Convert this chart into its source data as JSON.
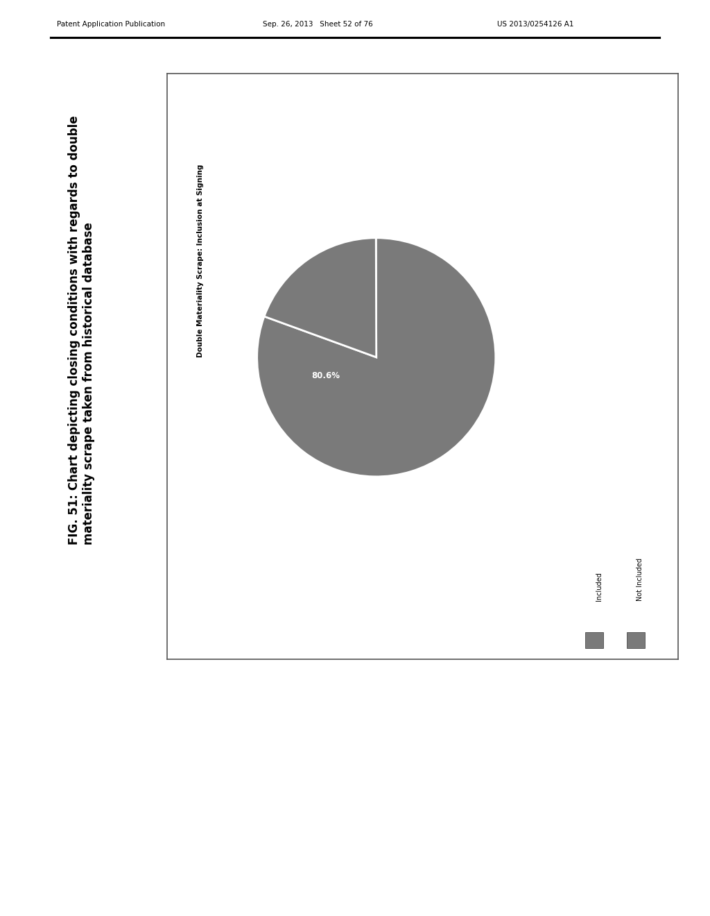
{
  "title_line1": "FIG. 51: Chart depicting closing conditions with regards to double",
  "title_line2": "materiality scrape taken from historical database",
  "header_left": "Patent Application Publication",
  "header_center": "Sep. 26, 2013   Sheet 52 of 76",
  "header_right": "US 2013/0254126 A1",
  "chart_title": "Double Materiality Scrape: Inclusion at Signing",
  "values": [
    80.6,
    19.4
  ],
  "label_text": "80.6%",
  "pie_color_large": "#7a7a7a",
  "pie_color_small": "#7a7a7a",
  "legend_labels": [
    "Included",
    "Not Included"
  ],
  "legend_color": "#7a7a7a",
  "background_color": "#ffffff",
  "box_background": "#ffffff"
}
